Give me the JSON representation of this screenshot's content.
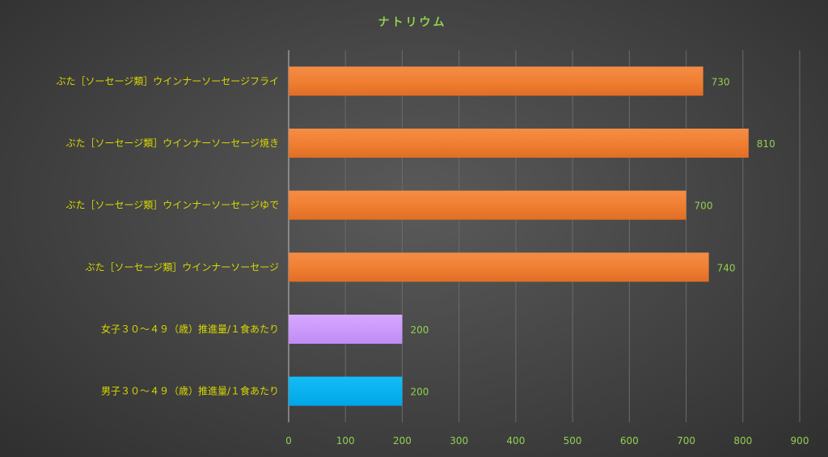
{
  "chart_data": {
    "type": "bar",
    "orientation": "horizontal",
    "title": "ナトリウム",
    "categories": [
      "ぶた［ソーセージ類］ウインナーソーセージフライ",
      "ぶた［ソーセージ類］ウインナーソーセージ焼き",
      "ぶた［ソーセージ類］ウインナーソーセージゆで",
      "ぶた［ソーセージ類］ウインナーソーセージ",
      "女子３０～４９（歳）推進量/１食あたり",
      "男子３０～４９（歳）推進量/１食あたり"
    ],
    "values": [
      730,
      810,
      700,
      740,
      200,
      200
    ],
    "bar_colors": [
      "#f07f33",
      "#f07f33",
      "#f07f33",
      "#f07f33",
      "#cc99ff",
      "#00b0f0"
    ],
    "data_labels": [
      "730",
      "810",
      "700",
      "740",
      "200",
      "200"
    ],
    "xlim": [
      0,
      900
    ],
    "xticks": [
      "0",
      "100",
      "200",
      "300",
      "400",
      "500",
      "600",
      "700",
      "800",
      "900"
    ],
    "grid": true,
    "legend": "none"
  }
}
